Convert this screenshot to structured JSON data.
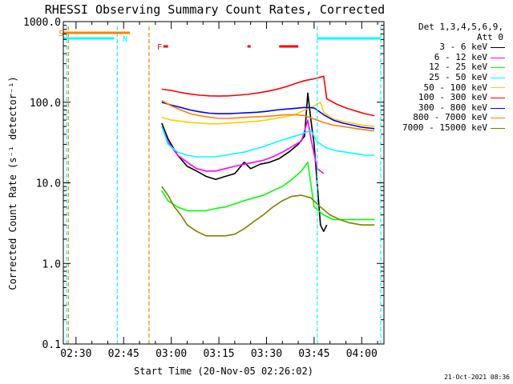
{
  "chart_data": {
    "type": "line",
    "title": "RHESSI Observing Summary Count Rates, Corrected",
    "xlabel": "Start Time (20-Nov-05 02:26:02)",
    "ylabel": "Corrected Count Rate (s⁻¹ detector⁻¹)",
    "y_scale": "log",
    "ylim": [
      0.1,
      1000
    ],
    "y_ticks": [
      "0.1",
      "1.0",
      "10.0",
      "100.0",
      "1000.0"
    ],
    "xlim_minutes_utc": [
      "02:26",
      "04:07"
    ],
    "x_ticks": [
      "02:30",
      "02:45",
      "03:00",
      "03:15",
      "03:30",
      "03:45",
      "04:00"
    ],
    "legend_header": [
      "Det 1,3,4,5,6,9,",
      "Att 0"
    ],
    "data_gaps": [
      [
        "02:27",
        "02:57"
      ],
      [
        "03:48",
        "03:49"
      ]
    ],
    "series": [
      {
        "name": "3 - 6 keV",
        "color": "#000000",
        "points": [
          [
            "02:57",
            55
          ],
          [
            "02:59",
            35
          ],
          [
            "03:02",
            22
          ],
          [
            "03:05",
            16
          ],
          [
            "03:08",
            14
          ],
          [
            "03:11",
            12
          ],
          [
            "03:14",
            11
          ],
          [
            "03:17",
            12
          ],
          [
            "03:20",
            13
          ],
          [
            "03:23",
            18
          ],
          [
            "03:25",
            15
          ],
          [
            "03:28",
            17
          ],
          [
            "03:31",
            18
          ],
          [
            "03:34",
            20
          ],
          [
            "03:37",
            24
          ],
          [
            "03:40",
            30
          ],
          [
            "03:42",
            38
          ],
          [
            "03:43",
            130
          ],
          [
            "03:44",
            60
          ],
          [
            "03:45",
            30
          ],
          [
            "03:47",
            3
          ],
          [
            "03:48",
            2.5
          ],
          [
            "03:49",
            3
          ]
        ]
      },
      {
        "name": "6 - 12 keV",
        "color": "#ff00ff",
        "points": [
          [
            "02:57",
            50
          ],
          [
            "02:59",
            32
          ],
          [
            "03:02",
            22
          ],
          [
            "03:05",
            18
          ],
          [
            "03:08",
            15
          ],
          [
            "03:11",
            14
          ],
          [
            "03:14",
            14
          ],
          [
            "03:17",
            15
          ],
          [
            "03:20",
            16
          ],
          [
            "03:23",
            17
          ],
          [
            "03:26",
            18
          ],
          [
            "03:29",
            19
          ],
          [
            "03:32",
            21
          ],
          [
            "03:35",
            24
          ],
          [
            "03:38",
            28
          ],
          [
            "03:41",
            33
          ],
          [
            "03:43",
            60
          ],
          [
            "03:44",
            35
          ],
          [
            "03:46",
            15
          ],
          [
            "03:48",
            13
          ]
        ]
      },
      {
        "name": "12 - 25 keV",
        "color": "#00ff00",
        "points": [
          [
            "02:57",
            8
          ],
          [
            "02:59",
            6
          ],
          [
            "03:02",
            5
          ],
          [
            "03:05",
            4.5
          ],
          [
            "03:08",
            4.5
          ],
          [
            "03:11",
            4.5
          ],
          [
            "03:14",
            4.8
          ],
          [
            "03:17",
            5
          ],
          [
            "03:20",
            5.5
          ],
          [
            "03:23",
            6
          ],
          [
            "03:26",
            6.5
          ],
          [
            "03:29",
            7
          ],
          [
            "03:32",
            8
          ],
          [
            "03:35",
            9
          ],
          [
            "03:38",
            11
          ],
          [
            "03:41",
            14
          ],
          [
            "03:43",
            18
          ],
          [
            "03:45",
            5
          ],
          [
            "03:48",
            4
          ],
          [
            "03:51",
            3.5
          ],
          [
            "03:54",
            3.5
          ],
          [
            "03:58",
            3.5
          ],
          [
            "04:02",
            3.5
          ],
          [
            "04:04",
            3.5
          ]
        ]
      },
      {
        "name": "25 - 50 keV",
        "color": "#00ffff",
        "points": [
          [
            "02:57",
            50
          ],
          [
            "02:59",
            30
          ],
          [
            "03:02",
            24
          ],
          [
            "03:05",
            22
          ],
          [
            "03:08",
            21
          ],
          [
            "03:11",
            21
          ],
          [
            "03:14",
            21
          ],
          [
            "03:17",
            22
          ],
          [
            "03:20",
            23
          ],
          [
            "03:23",
            24
          ],
          [
            "03:26",
            26
          ],
          [
            "03:29",
            28
          ],
          [
            "03:32",
            31
          ],
          [
            "03:35",
            34
          ],
          [
            "03:38",
            37
          ],
          [
            "03:41",
            40
          ],
          [
            "03:44",
            45
          ],
          [
            "03:46",
            32
          ],
          [
            "03:49",
            27
          ],
          [
            "03:52",
            25
          ],
          [
            "03:55",
            24
          ],
          [
            "03:58",
            23
          ],
          [
            "04:01",
            22
          ],
          [
            "04:04",
            22
          ]
        ]
      },
      {
        "name": "50 - 100 keV",
        "color": "#ffcc00",
        "points": [
          [
            "02:57",
            65
          ],
          [
            "03:00",
            60
          ],
          [
            "03:03",
            58
          ],
          [
            "03:06",
            56
          ],
          [
            "03:09",
            55
          ],
          [
            "03:12",
            54
          ],
          [
            "03:15",
            54
          ],
          [
            "03:18",
            55
          ],
          [
            "03:21",
            56
          ],
          [
            "03:24",
            57
          ],
          [
            "03:27",
            58
          ],
          [
            "03:30",
            60
          ],
          [
            "03:33",
            63
          ],
          [
            "03:36",
            66
          ],
          [
            "03:39",
            70
          ],
          [
            "03:42",
            80
          ],
          [
            "03:45",
            90
          ],
          [
            "03:47",
            100
          ],
          [
            "03:48",
            75
          ],
          [
            "03:51",
            62
          ],
          [
            "03:54",
            58
          ],
          [
            "03:57",
            55
          ],
          [
            "04:00",
            52
          ],
          [
            "04:04",
            50
          ]
        ]
      },
      {
        "name": "100 - 300 keV",
        "color": "#ff0000",
        "points": [
          [
            "02:57",
            145
          ],
          [
            "03:00",
            140
          ],
          [
            "03:03",
            132
          ],
          [
            "03:06",
            126
          ],
          [
            "03:09",
            122
          ],
          [
            "03:12",
            120
          ],
          [
            "03:15",
            119
          ],
          [
            "03:18",
            120
          ],
          [
            "03:21",
            122
          ],
          [
            "03:24",
            125
          ],
          [
            "03:27",
            130
          ],
          [
            "03:30",
            136
          ],
          [
            "03:33",
            144
          ],
          [
            "03:36",
            155
          ],
          [
            "03:39",
            170
          ],
          [
            "03:42",
            185
          ],
          [
            "03:45",
            195
          ],
          [
            "03:48",
            210
          ],
          [
            "03:49",
            110
          ],
          [
            "03:52",
            95
          ],
          [
            "03:55",
            85
          ],
          [
            "03:58",
            78
          ],
          [
            "04:01",
            72
          ],
          [
            "04:04",
            68
          ]
        ]
      },
      {
        "name": "300 - 800 keV",
        "color": "#0000ff",
        "points": [
          [
            "02:57",
            100
          ],
          [
            "03:00",
            92
          ],
          [
            "03:03",
            86
          ],
          [
            "03:06",
            80
          ],
          [
            "03:09",
            76
          ],
          [
            "03:12",
            73
          ],
          [
            "03:15",
            72
          ],
          [
            "03:18",
            72
          ],
          [
            "03:21",
            73
          ],
          [
            "03:24",
            74
          ],
          [
            "03:27",
            75
          ],
          [
            "03:30",
            77
          ],
          [
            "03:33",
            80
          ],
          [
            "03:36",
            82
          ],
          [
            "03:39",
            84
          ],
          [
            "03:42",
            86
          ],
          [
            "03:45",
            85
          ],
          [
            "03:48",
            70
          ],
          [
            "03:51",
            60
          ],
          [
            "03:54",
            55
          ],
          [
            "03:57",
            52
          ],
          [
            "04:00",
            49
          ],
          [
            "04:04",
            47
          ]
        ]
      },
      {
        "name": "800 - 7000 keV",
        "color": "#ff8000",
        "points": [
          [
            "02:57",
            105
          ],
          [
            "03:00",
            90
          ],
          [
            "03:03",
            80
          ],
          [
            "03:06",
            72
          ],
          [
            "03:09",
            68
          ],
          [
            "03:12",
            65
          ],
          [
            "03:15",
            63
          ],
          [
            "03:18",
            63
          ],
          [
            "03:21",
            64
          ],
          [
            "03:24",
            65
          ],
          [
            "03:27",
            66
          ],
          [
            "03:30",
            67
          ],
          [
            "03:33",
            68
          ],
          [
            "03:36",
            70
          ],
          [
            "03:39",
            70
          ],
          [
            "03:42",
            68
          ],
          [
            "03:45",
            62
          ],
          [
            "03:48",
            56
          ],
          [
            "03:51",
            52
          ],
          [
            "03:54",
            50
          ],
          [
            "03:57",
            48
          ],
          [
            "04:00",
            46
          ],
          [
            "04:04",
            44
          ]
        ]
      },
      {
        "name": "7000 - 15000 keV",
        "color": "#808000",
        "points": [
          [
            "02:57",
            9
          ],
          [
            "02:59",
            7
          ],
          [
            "03:01",
            5
          ],
          [
            "03:03",
            4
          ],
          [
            "03:05",
            3
          ],
          [
            "03:08",
            2.5
          ],
          [
            "03:11",
            2.2
          ],
          [
            "03:14",
            2.2
          ],
          [
            "03:17",
            2.2
          ],
          [
            "03:20",
            2.3
          ],
          [
            "03:23",
            2.7
          ],
          [
            "03:26",
            3.3
          ],
          [
            "03:29",
            4
          ],
          [
            "03:32",
            5
          ],
          [
            "03:35",
            6
          ],
          [
            "03:38",
            6.8
          ],
          [
            "03:41",
            7
          ],
          [
            "03:44",
            6.5
          ],
          [
            "03:47",
            5
          ],
          [
            "03:50",
            4
          ],
          [
            "03:53",
            3.5
          ],
          [
            "03:56",
            3.2
          ],
          [
            "04:00",
            3
          ],
          [
            "04:04",
            3
          ]
        ]
      }
    ],
    "segments": [
      {
        "flag": "S",
        "color": "#ff8000",
        "ranges": [
          [
            "02:26",
            "02:47"
          ]
        ]
      },
      {
        "flag": "N",
        "color": "#00ffff",
        "ranges": [
          [
            "02:26",
            "02:42"
          ],
          [
            "03:46",
            "04:06"
          ]
        ]
      },
      {
        "flag": "F",
        "color": "#ff0000",
        "ranges": [
          [
            "02:57.5",
            "02:59"
          ],
          [
            "03:24",
            "03:25"
          ],
          [
            "03:34",
            "03:40"
          ]
        ]
      }
    ],
    "vertical_markers": [
      {
        "time": "02:27",
        "color": "#00ffff"
      },
      {
        "time": "02:27.6",
        "color": "#ff8000"
      },
      {
        "time": "02:43",
        "color": "#00ffff"
      },
      {
        "time": "02:53",
        "color": "#ff8000"
      },
      {
        "time": "03:46",
        "color": "#00ffff"
      },
      {
        "time": "04:06",
        "color": "#00ffff"
      }
    ]
  },
  "timestamp": "21-Oct-2021 08:36"
}
